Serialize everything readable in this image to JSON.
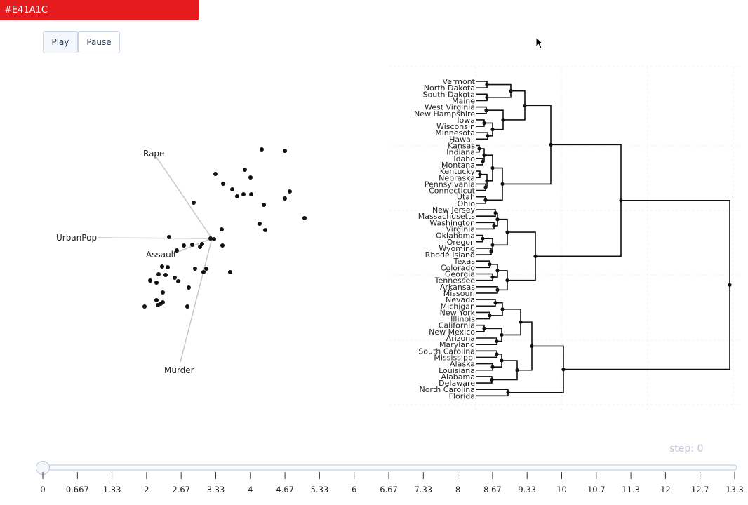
{
  "color_tag": "#E41A1C",
  "controls": {
    "play_label": "Play",
    "pause_label": "Pause"
  },
  "biplot": {
    "arrow_labels": [
      "Rape",
      "UrbanPop",
      "Assault",
      "Murder"
    ],
    "points": [
      [
        373,
        213
      ],
      [
        406,
        215
      ],
      [
        349,
        242
      ],
      [
        307,
        248
      ],
      [
        357,
        253
      ],
      [
        318,
        262
      ],
      [
        331,
        270
      ],
      [
        413,
        273
      ],
      [
        347,
        277
      ],
      [
        358,
        277
      ],
      [
        338,
        280
      ],
      [
        406,
        283
      ],
      [
        276,
        289
      ],
      [
        376,
        292
      ],
      [
        434,
        311
      ],
      [
        370,
        319
      ],
      [
        316,
        327
      ],
      [
        378,
        328
      ],
      [
        241,
        338
      ],
      [
        300,
        340
      ],
      [
        305,
        341
      ],
      [
        274,
        349
      ],
      [
        262,
        350
      ],
      [
        288,
        348
      ],
      [
        317,
        350
      ],
      [
        285,
        352
      ],
      [
        252,
        357
      ],
      [
        231,
        380
      ],
      [
        239,
        381
      ],
      [
        278,
        383
      ],
      [
        294,
        383
      ],
      [
        328,
        388
      ],
      [
        290,
        388
      ],
      [
        226,
        391
      ],
      [
        236,
        392
      ],
      [
        249,
        396
      ],
      [
        214,
        400
      ],
      [
        223,
        403
      ],
      [
        254,
        401
      ],
      [
        269,
        410
      ],
      [
        232,
        417
      ],
      [
        223,
        428
      ],
      [
        229,
        433
      ],
      [
        232,
        431
      ],
      [
        206,
        437
      ],
      [
        225,
        435
      ],
      [
        267,
        437
      ]
    ]
  },
  "dendrogram": {
    "states": [
      "Vermont",
      "North Dakota",
      "South Dakota",
      "Maine",
      "West Virginia",
      "New Hampshire",
      "Iowa",
      "Wisconsin",
      "Minnesota",
      "Hawaii",
      "Kansas",
      "Indiana",
      "Idaho",
      "Montana",
      "Kentucky",
      "Nebraska",
      "Pennsylvania",
      "Connecticut",
      "Utah",
      "Ohio",
      "New Jersey",
      "Massachusetts",
      "Washington",
      "Virginia",
      "Oklahoma",
      "Oregon",
      "Wyoming",
      "Rhode Island",
      "Texas",
      "Colorado",
      "Georgia",
      "Tennessee",
      "Arkansas",
      "Missouri",
      "Nevada",
      "Michigan",
      "New York",
      "Illinois",
      "California",
      "New Mexico",
      "Arizona",
      "Maryland",
      "South Carolina",
      "Mississippi",
      "Alaska",
      "Louisiana",
      "Alabama",
      "Delaware",
      "North Carolina",
      "Florida"
    ]
  },
  "slider": {
    "step_prefix": "step: ",
    "step_value": "0",
    "ticks": [
      "0",
      "0.667",
      "1.33",
      "2",
      "2.67",
      "3.33",
      "4",
      "4.67",
      "5.33",
      "6",
      "6.67",
      "7.33",
      "8",
      "8.67",
      "9.33",
      "10",
      "10.7",
      "11.3",
      "12",
      "12.7",
      "13.3"
    ]
  }
}
